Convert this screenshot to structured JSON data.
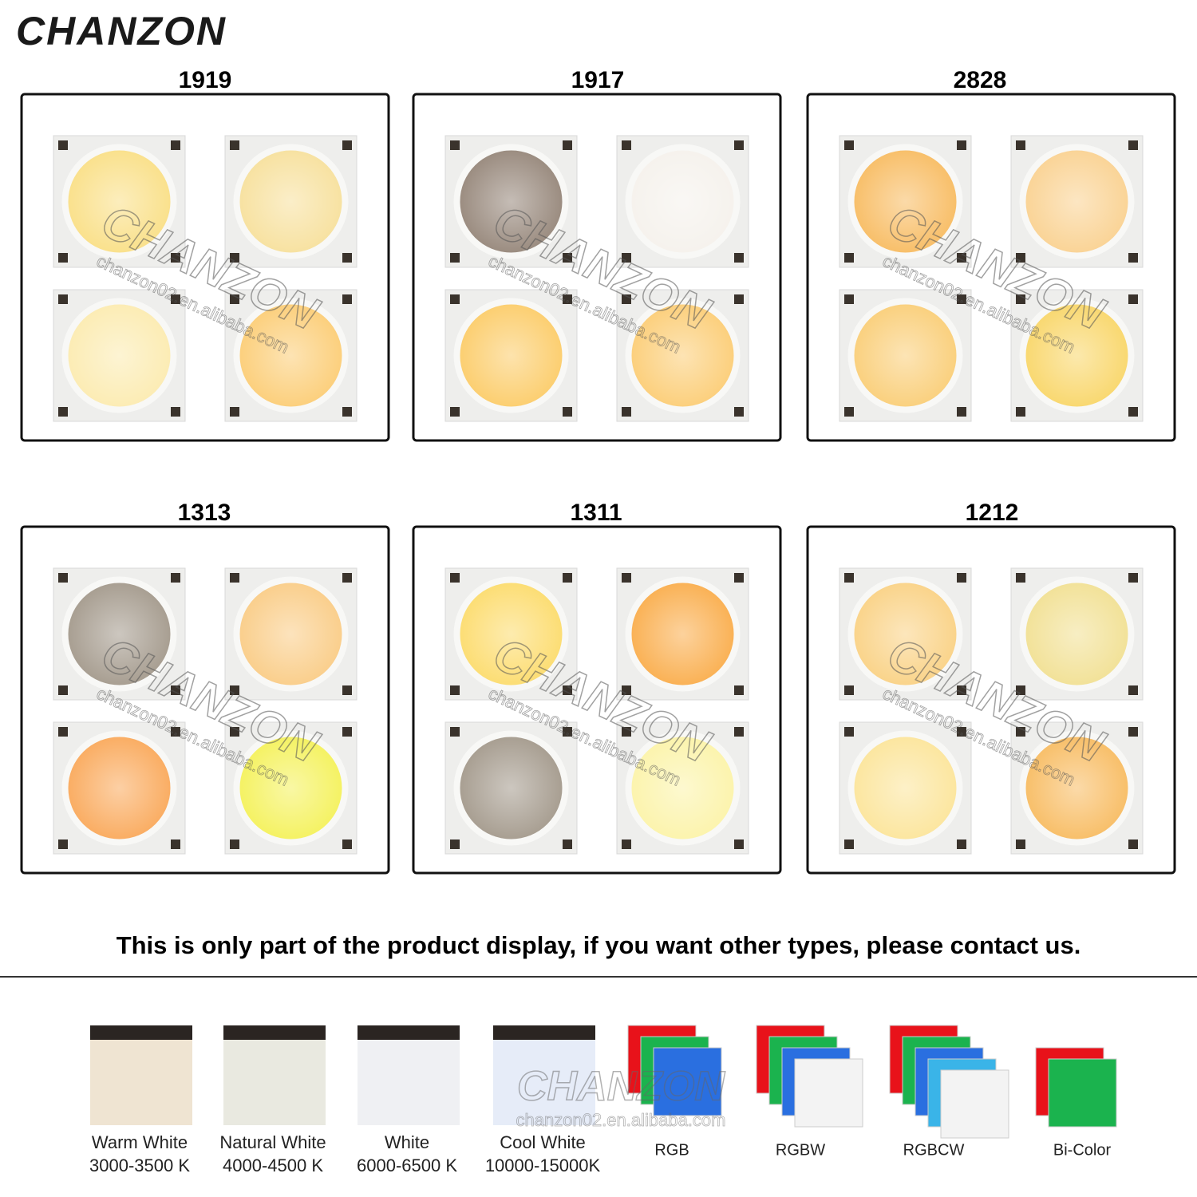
{
  "brand": "CHANZON",
  "watermark": {
    "brand": "CHANZON",
    "url": "chanzon02.en.alibaba.com"
  },
  "panels": [
    {
      "title": "1919"
    },
    {
      "title": "1917"
    },
    {
      "title": "2828"
    },
    {
      "title": "1313"
    },
    {
      "title": "1311"
    },
    {
      "title": "1212"
    }
  ],
  "notice": "This is only part of the product display, if you want other types, please contact us.",
  "color_options": [
    {
      "lines": [
        "Warm White",
        "3000-3500 K"
      ]
    },
    {
      "lines": [
        "Natural White",
        "4000-4500 K"
      ]
    },
    {
      "lines": [
        "White",
        "6000-6500 K"
      ]
    },
    {
      "lines": [
        "Cool White",
        "10000-15000K"
      ]
    },
    {
      "lines": [
        "RGB"
      ]
    },
    {
      "lines": [
        "RGBW"
      ]
    },
    {
      "lines": [
        "RGBCW"
      ]
    },
    {
      "lines": [
        "Bi-Color"
      ]
    }
  ]
}
